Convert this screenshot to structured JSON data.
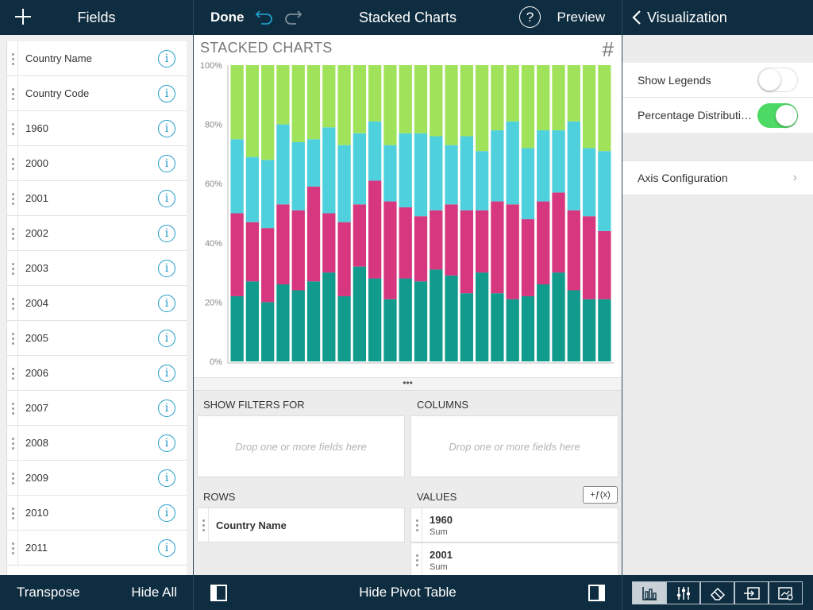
{
  "left_panel": {
    "title": "Fields",
    "fields": [
      "Country Name",
      "Country Code",
      "1960",
      "2000",
      "2001",
      "2002",
      "2003",
      "2004",
      "2005",
      "2006",
      "2007",
      "2008",
      "2009",
      "2010",
      "2011"
    ],
    "toolbar": {
      "transpose": "Transpose",
      "hide_all": "Hide All"
    }
  },
  "center_panel": {
    "done": "Done",
    "title": "Stacked Charts",
    "help": "?",
    "preview": "Preview",
    "handle": "•••",
    "pivot": {
      "filters_label": "SHOW FILTERS FOR",
      "columns_label": "COLUMNS",
      "rows_label": "ROWS",
      "values_label": "VALUES",
      "drop_placeholder": "Drop one or more fields here",
      "fx_label": "+ƒ(x)",
      "rows_field": "Country Name",
      "values": [
        {
          "name": "1960",
          "agg": "Sum"
        },
        {
          "name": "2001",
          "agg": "Sum"
        }
      ]
    },
    "toolbar": {
      "hide_pivot": "Hide Pivot Table"
    }
  },
  "chart_data": {
    "type": "bar",
    "stacked": true,
    "percentage": true,
    "title": "STACKED CHARTS",
    "y_ticks": [
      "0%",
      "20%",
      "40%",
      "60%",
      "80%",
      "100%"
    ],
    "ylim": [
      0,
      100
    ],
    "colors": [
      "#109b8d",
      "#d6377f",
      "#4ed0dd",
      "#a0e35b"
    ],
    "series": [
      {
        "values": [
          22,
          27,
          20,
          26,
          24,
          27,
          30,
          22,
          32,
          28,
          21,
          28,
          27,
          31,
          29,
          23,
          30,
          23,
          21,
          22,
          26,
          30,
          24,
          21,
          21
        ]
      },
      {
        "values": [
          28,
          20,
          25,
          27,
          27,
          32,
          20,
          25,
          21,
          33,
          33,
          24,
          22,
          20,
          24,
          28,
          21,
          31,
          32,
          26,
          28,
          27,
          27,
          28,
          23
        ]
      },
      {
        "values": [
          25,
          22,
          23,
          27,
          23,
          16,
          29,
          26,
          24,
          20,
          19,
          25,
          28,
          25,
          20,
          25,
          20,
          24,
          28,
          24,
          24,
          21,
          30,
          23,
          27
        ]
      },
      {
        "values": [
          25,
          31,
          32,
          20,
          26,
          25,
          21,
          27,
          23,
          19,
          27,
          23,
          23,
          24,
          27,
          24,
          29,
          22,
          19,
          28,
          22,
          22,
          19,
          28,
          29
        ]
      }
    ]
  },
  "right_panel": {
    "back": "‹",
    "title": "Visualization",
    "settings": {
      "show_legends": {
        "label": "Show Legends",
        "on": false
      },
      "percentage": {
        "label": "Percentage Distributi…",
        "on": true
      },
      "axis_config": {
        "label": "Axis Configuration"
      }
    }
  },
  "colors": {
    "nav_bg": "#0f2d40",
    "accent": "#1e9bc9",
    "toggle_on": "#4cd964"
  }
}
